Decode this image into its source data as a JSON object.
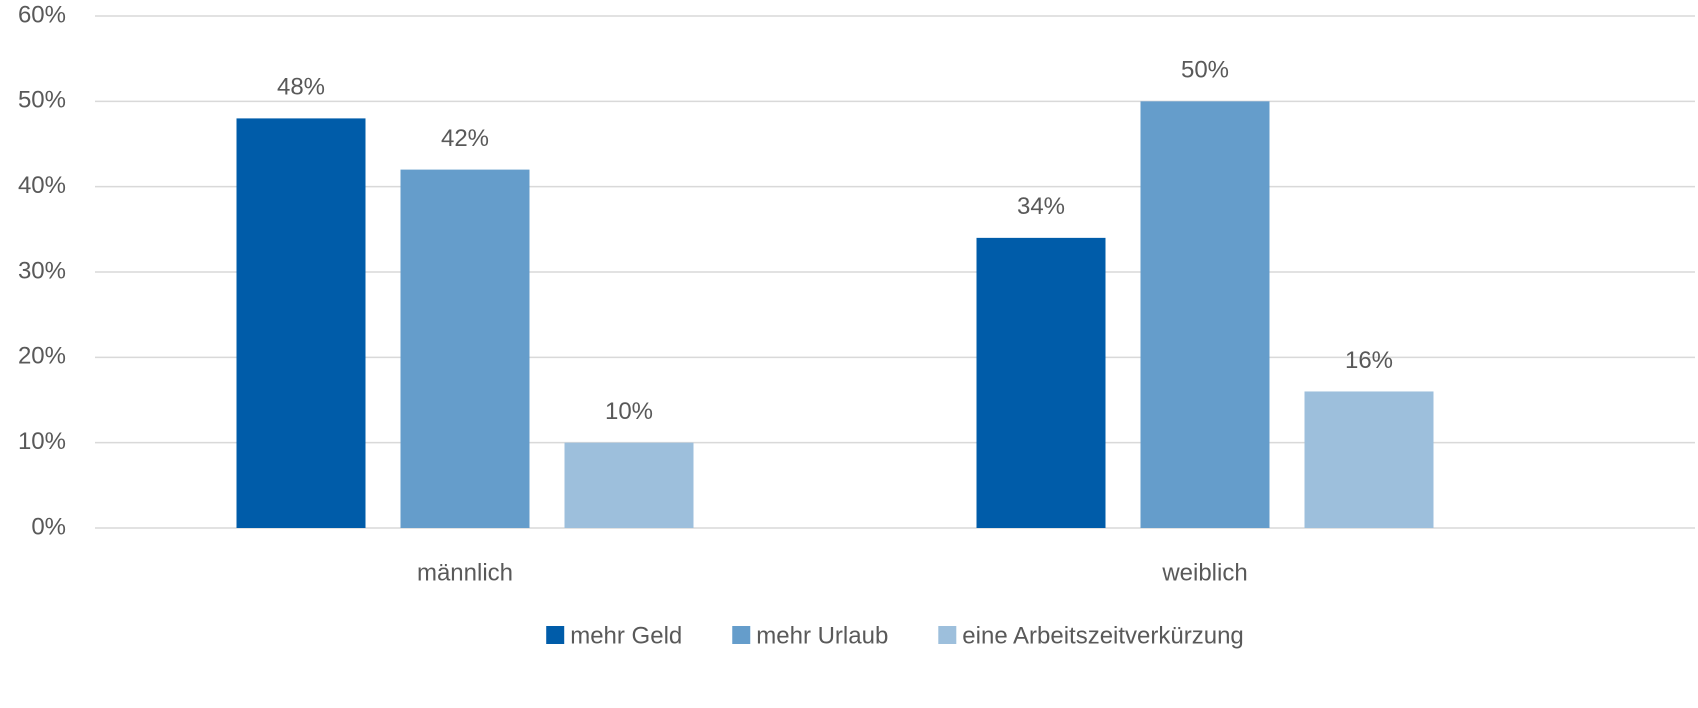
{
  "chart_data": {
    "type": "bar",
    "categories": [
      "männlich",
      "weiblich"
    ],
    "series": [
      {
        "name": "mehr Geld",
        "color": "#005ca9",
        "values": [
          48,
          34
        ],
        "value_labels": [
          "48%",
          "34%"
        ]
      },
      {
        "name": "mehr Urlaub",
        "color": "#659dcb",
        "values": [
          42,
          50
        ],
        "value_labels": [
          "42%",
          "50%"
        ]
      },
      {
        "name": "eine Arbeitszeitverkürzung",
        "color": "#9dbfdc",
        "values": [
          10,
          16
        ],
        "value_labels": [
          "10%",
          "16%"
        ]
      }
    ],
    "ylim": [
      0,
      60
    ],
    "yticks": [
      {
        "value": 0,
        "label": "0%"
      },
      {
        "value": 10,
        "label": "10%"
      },
      {
        "value": 20,
        "label": "20%"
      },
      {
        "value": 30,
        "label": "30%"
      },
      {
        "value": 40,
        "label": "40%"
      },
      {
        "value": 50,
        "label": "50%"
      },
      {
        "value": 60,
        "label": "60%"
      }
    ],
    "grid": true,
    "legend": "bottom"
  }
}
